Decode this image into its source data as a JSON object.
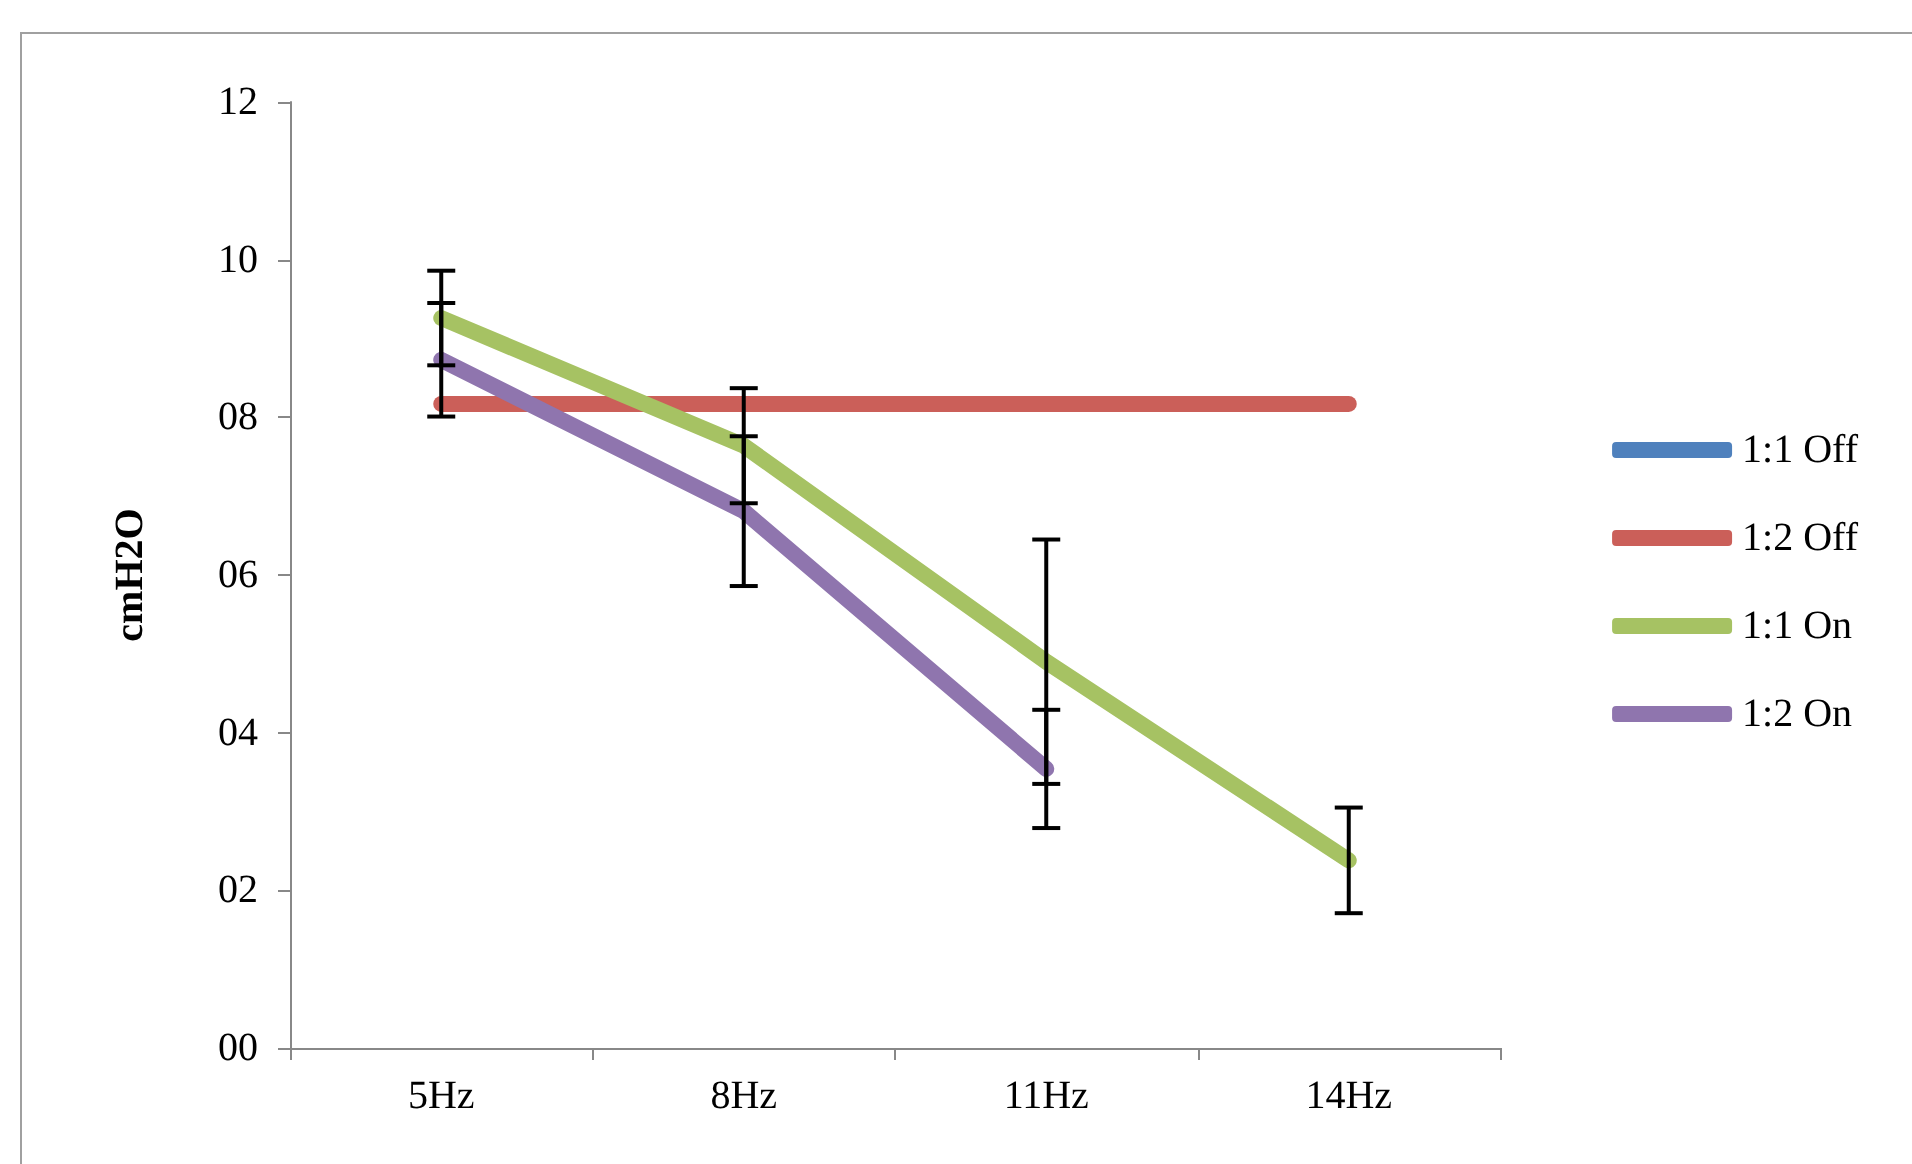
{
  "chart_data": {
    "type": "line",
    "ylabel": "cmH2O",
    "categories": [
      "5Hz",
      "8Hz",
      "11Hz",
      "14Hz"
    ],
    "series": [
      {
        "name": "1:1 Off",
        "color": "#4f81bd",
        "values": [
          null,
          null,
          null,
          null
        ]
      },
      {
        "name": "1:2 Off",
        "color": "#cb5f59",
        "values": [
          8.17,
          8.17,
          8.17,
          8.17
        ]
      },
      {
        "name": "1:1 On",
        "color": "#a6c263",
        "values": [
          9.26,
          7.64,
          4.9,
          2.38
        ],
        "errors": [
          0.6,
          0.73,
          1.55,
          0.67
        ]
      },
      {
        "name": "1:2 On",
        "color": "#8f75ae",
        "values": [
          8.73,
          6.81,
          3.54,
          null
        ],
        "errors": [
          0.72,
          0.95,
          0.75,
          null
        ]
      }
    ],
    "ylim": [
      0,
      12
    ],
    "yticks": [
      {
        "value": 0,
        "label": "00"
      },
      {
        "value": 2,
        "label": "02"
      },
      {
        "value": 4,
        "label": "04"
      },
      {
        "value": 6,
        "label": "06"
      },
      {
        "value": 8,
        "label": "08"
      },
      {
        "value": 10,
        "label": "10"
      },
      {
        "value": 12,
        "label": "12"
      }
    ],
    "grid": false,
    "legend": "right",
    "marker": "none",
    "line_style": "solid"
  }
}
